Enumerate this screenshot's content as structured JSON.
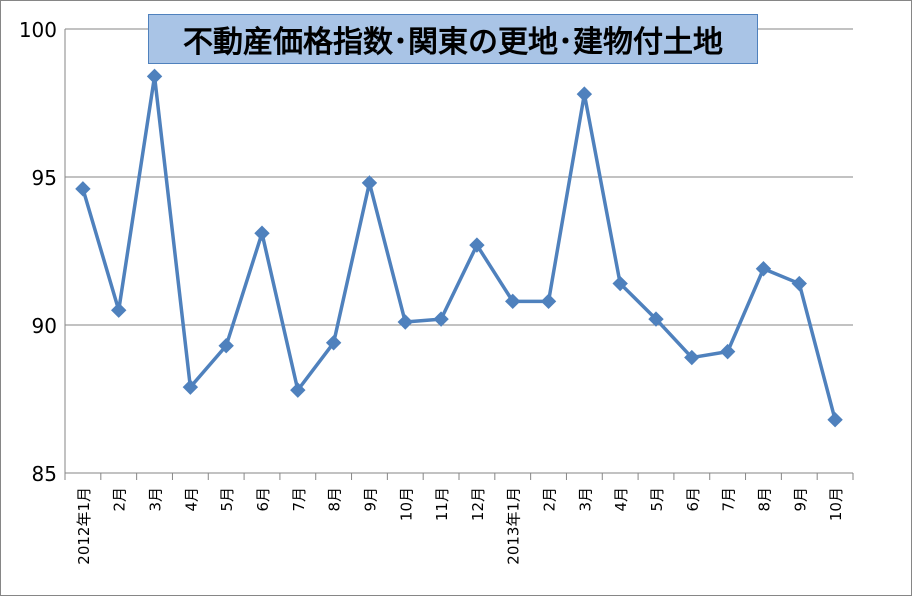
{
  "chart_data": {
    "type": "line",
    "title": "不動産価格指数･関東の更地･建物付土地",
    "xlabel": "",
    "ylabel": "",
    "categories": [
      "2012年1月",
      "2月",
      "3月",
      "4月",
      "5月",
      "6月",
      "7月",
      "8月",
      "9月",
      "10月",
      "11月",
      "12月",
      "2013年1月",
      "2月",
      "3月",
      "4月",
      "5月",
      "6月",
      "7月",
      "8月",
      "9月",
      "10月"
    ],
    "series": [
      {
        "values": [
          94.6,
          90.5,
          98.4,
          87.9,
          89.3,
          93.1,
          87.8,
          89.4,
          94.8,
          90.1,
          90.2,
          92.7,
          90.8,
          90.8,
          97.8,
          91.4,
          90.2,
          88.9,
          89.1,
          91.9,
          91.4,
          86.8
        ],
        "color": "#4f81bd"
      }
    ],
    "ylim": [
      85,
      100
    ],
    "yticks": [
      85,
      90,
      95,
      100
    ],
    "grid": true,
    "legend": "none",
    "marker": "diamond"
  }
}
